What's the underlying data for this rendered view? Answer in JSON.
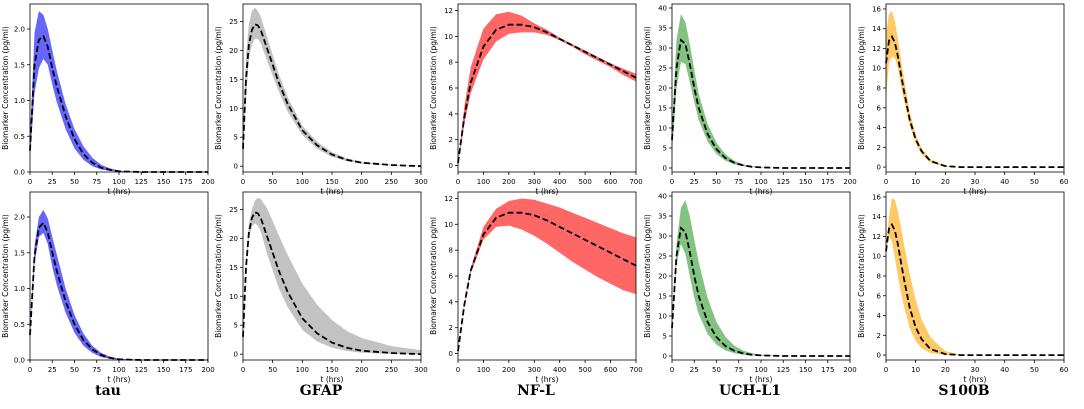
{
  "column_labels": [
    "tau",
    "GFAP",
    "NF-L",
    "UCH-L1",
    "S100B"
  ],
  "chart_data": [
    {
      "type": "area",
      "row": 1,
      "column": "tau",
      "color": "#0000ff",
      "xlabel": "t (hrs)",
      "ylabel": "Biomarker Concentration (pg/ml)",
      "xlim": [
        0,
        200
      ],
      "ylim": [
        0,
        2.35
      ],
      "xticks": [
        0,
        25,
        50,
        75,
        100,
        125,
        150,
        175,
        200
      ],
      "yticks": [
        0.0,
        0.5,
        1.0,
        1.5,
        2.0
      ],
      "ytick_labels": [
        "0.0",
        "0.5",
        "1.0",
        "1.5",
        "2.0"
      ],
      "x": [
        0,
        5,
        10,
        15,
        20,
        25,
        30,
        40,
        50,
        60,
        70,
        80,
        90,
        100,
        110,
        125,
        150,
        175,
        200
      ],
      "mean": [
        0.3,
        1.5,
        1.85,
        1.9,
        1.75,
        1.45,
        1.2,
        0.78,
        0.46,
        0.25,
        0.13,
        0.06,
        0.03,
        0.01,
        0.005,
        0,
        0,
        0,
        0
      ],
      "lower": [
        0.2,
        1.1,
        1.45,
        1.58,
        1.5,
        1.22,
        0.98,
        0.6,
        0.33,
        0.17,
        0.08,
        0.035,
        0.015,
        0.005,
        0,
        0,
        0,
        0,
        0
      ],
      "upper": [
        0.45,
        1.95,
        2.25,
        2.2,
        2.0,
        1.7,
        1.42,
        0.95,
        0.6,
        0.36,
        0.2,
        0.1,
        0.05,
        0.02,
        0.01,
        0,
        0,
        0,
        0
      ]
    },
    {
      "type": "area",
      "row": 1,
      "column": "GFAP",
      "color": "#999999",
      "xlabel": "t (hrs)",
      "ylabel": "Biomarker Concentration (pg/ml)",
      "xlim": [
        0,
        300
      ],
      "ylim": [
        -1,
        28
      ],
      "xticks": [
        0,
        50,
        100,
        150,
        200,
        250,
        300
      ],
      "yticks": [
        0,
        5,
        10,
        15,
        20,
        25
      ],
      "ytick_labels": [
        "0",
        "5",
        "10",
        "15",
        "20",
        "25"
      ],
      "x": [
        0,
        5,
        10,
        15,
        20,
        25,
        30,
        40,
        50,
        60,
        75,
        100,
        125,
        150,
        175,
        200,
        250,
        300
      ],
      "mean": [
        3,
        15,
        21,
        23.5,
        24.5,
        24.3,
        23.5,
        20.5,
        17.5,
        14.5,
        10.8,
        6.2,
        3.6,
        2.0,
        1.1,
        0.6,
        0.2,
        0
      ],
      "lower": [
        1.5,
        12,
        18.5,
        21,
        22,
        22,
        21.2,
        18.4,
        15.6,
        13,
        9.5,
        5.4,
        3.0,
        1.6,
        0.85,
        0.45,
        0.12,
        0
      ],
      "upper": [
        5,
        19,
        24.5,
        26.8,
        27.4,
        26.8,
        25.8,
        22.5,
        19.2,
        16,
        12,
        7.0,
        4.2,
        2.4,
        1.35,
        0.75,
        0.28,
        0.05
      ]
    },
    {
      "type": "area",
      "row": 1,
      "column": "NF-L",
      "color": "#ff0000",
      "xlabel": "t (hrs)",
      "ylabel": "Biomarker Concentration (pg/ml)",
      "xlim": [
        0,
        700
      ],
      "ylim": [
        -0.5,
        12.5
      ],
      "xticks": [
        0,
        100,
        200,
        300,
        400,
        500,
        600,
        700
      ],
      "yticks": [
        0,
        2,
        4,
        6,
        8,
        10,
        12
      ],
      "ytick_labels": [
        "0",
        "2",
        "4",
        "6",
        "8",
        "10",
        "12"
      ],
      "x": [
        0,
        25,
        50,
        100,
        150,
        200,
        250,
        300,
        350,
        400,
        450,
        500,
        550,
        600,
        650,
        700
      ],
      "mean": [
        0.2,
        3.8,
        6.4,
        9.2,
        10.5,
        10.9,
        10.9,
        10.7,
        10.3,
        9.8,
        9.3,
        8.8,
        8.3,
        7.8,
        7.3,
        6.8
      ],
      "lower": [
        0.2,
        3.2,
        5.6,
        8.2,
        9.6,
        10.2,
        10.3,
        10.3,
        10.1,
        9.7,
        9.2,
        8.6,
        8.1,
        7.6,
        7.0,
        6.5
      ],
      "upper": [
        0.2,
        4.6,
        7.6,
        10.6,
        11.7,
        11.9,
        11.6,
        11.0,
        10.5,
        9.9,
        9.4,
        8.9,
        8.4,
        7.9,
        7.5,
        7.1
      ]
    },
    {
      "type": "area",
      "row": 1,
      "column": "UCH-L1",
      "color": "#2e9b2e",
      "xlabel": "t (hrs)",
      "ylabel": "Biomarker Concentration (pg/ml)",
      "xlim": [
        0,
        200
      ],
      "ylim": [
        -1,
        41
      ],
      "xticks": [
        0,
        25,
        50,
        75,
        100,
        125,
        150,
        175,
        200
      ],
      "yticks": [
        0,
        5,
        10,
        15,
        20,
        25,
        30,
        35,
        40
      ],
      "ytick_labels": [
        "0",
        "5",
        "10",
        "15",
        "20",
        "25",
        "30",
        "35",
        "40"
      ],
      "x": [
        0,
        5,
        10,
        15,
        20,
        25,
        30,
        40,
        50,
        60,
        70,
        80,
        90,
        100,
        125,
        150,
        175,
        200
      ],
      "mean": [
        7,
        25,
        32,
        31,
        26,
        20,
        15,
        8.5,
        4.7,
        2.5,
        1.3,
        0.65,
        0.3,
        0.15,
        0,
        0,
        0,
        0
      ],
      "lower": [
        4,
        20,
        26.5,
        26,
        21.5,
        16.5,
        12,
        6.6,
        3.5,
        1.8,
        0.9,
        0.45,
        0.2,
        0.1,
        0,
        0,
        0,
        0
      ],
      "upper": [
        10,
        32,
        38.5,
        36.5,
        31,
        24.5,
        18.5,
        11,
        6.3,
        3.4,
        1.8,
        0.9,
        0.45,
        0.2,
        0,
        0,
        0,
        0
      ]
    },
    {
      "type": "area",
      "row": 1,
      "column": "S100B",
      "color": "#ffa500",
      "xlabel": "t (hrs)",
      "ylabel": "Biomarker Concentration (pg/ml)",
      "xlim": [
        0,
        60
      ],
      "ylim": [
        -0.5,
        16.5
      ],
      "xticks": [
        0,
        10,
        20,
        30,
        40,
        50,
        60
      ],
      "yticks": [
        0,
        2,
        4,
        6,
        8,
        10,
        12,
        14,
        16
      ],
      "ytick_labels": [
        "0",
        "2",
        "4",
        "6",
        "8",
        "10",
        "12",
        "14",
        "16"
      ],
      "x": [
        0,
        1,
        2,
        3,
        4,
        5,
        6,
        8,
        10,
        12,
        15,
        20,
        25,
        30,
        40,
        50,
        60
      ],
      "mean": [
        10.5,
        12.8,
        13.2,
        12.6,
        11.2,
        9.5,
        7.8,
        4.8,
        2.8,
        1.6,
        0.6,
        0.1,
        0,
        0,
        0,
        0,
        0
      ],
      "lower": [
        7,
        10.5,
        11.2,
        11,
        10,
        8.3,
        6.8,
        4.2,
        2.4,
        1.3,
        0.45,
        0.05,
        0,
        0,
        0,
        0,
        0
      ],
      "upper": [
        13.5,
        15.5,
        15.8,
        14.8,
        13,
        11,
        9.1,
        5.6,
        3.3,
        1.9,
        0.8,
        0.15,
        0,
        0,
        0,
        0,
        0
      ]
    },
    {
      "type": "area",
      "row": 2,
      "column": "tau",
      "color": "#0000ff",
      "xlabel": "t (hrs)",
      "ylabel": "Biomarker Concentration (pg/ml)",
      "xlim": [
        0,
        200
      ],
      "ylim": [
        0,
        2.35
      ],
      "xticks": [
        0,
        25,
        50,
        75,
        100,
        125,
        150,
        175,
        200
      ],
      "yticks": [
        0.0,
        0.5,
        1.0,
        1.5,
        2.0
      ],
      "ytick_labels": [
        "0.0",
        "0.5",
        "1.0",
        "1.5",
        "2.0"
      ],
      "x": [
        0,
        5,
        10,
        15,
        20,
        25,
        30,
        40,
        50,
        60,
        70,
        80,
        90,
        100,
        110,
        125,
        150,
        175,
        200
      ],
      "mean": [
        0.35,
        1.45,
        1.85,
        1.92,
        1.78,
        1.5,
        1.25,
        0.82,
        0.5,
        0.28,
        0.15,
        0.07,
        0.03,
        0.01,
        0.005,
        0,
        0,
        0,
        0
      ],
      "lower": [
        0.33,
        1.35,
        1.72,
        1.78,
        1.62,
        1.3,
        1.05,
        0.66,
        0.38,
        0.2,
        0.1,
        0.04,
        0.015,
        0.005,
        0,
        0,
        0,
        0,
        0
      ],
      "upper": [
        0.37,
        1.6,
        2.0,
        2.1,
        1.98,
        1.72,
        1.48,
        1.0,
        0.63,
        0.37,
        0.2,
        0.1,
        0.045,
        0.02,
        0.008,
        0,
        0,
        0,
        0
      ]
    },
    {
      "type": "area",
      "row": 2,
      "column": "GFAP",
      "color": "#999999",
      "xlabel": "t (hrs)",
      "ylabel": "Biomarker Concentration (pg/ml)",
      "xlim": [
        0,
        300
      ],
      "ylim": [
        -1,
        28
      ],
      "xticks": [
        0,
        50,
        100,
        150,
        200,
        250,
        300
      ],
      "yticks": [
        0,
        5,
        10,
        15,
        20,
        25
      ],
      "ytick_labels": [
        "0",
        "5",
        "10",
        "15",
        "20",
        "25"
      ],
      "x": [
        0,
        5,
        10,
        15,
        20,
        25,
        30,
        40,
        50,
        60,
        75,
        100,
        125,
        150,
        175,
        200,
        250,
        300
      ],
      "mean": [
        3,
        15,
        21,
        23.5,
        24.5,
        24.3,
        23.5,
        20.5,
        17.5,
        14.5,
        10.8,
        6.2,
        3.6,
        2.0,
        1.1,
        0.6,
        0.2,
        0
      ],
      "lower": [
        3,
        14.5,
        20,
        22,
        22.6,
        22.2,
        21.2,
        17.5,
        14.5,
        11.5,
        8.2,
        4.2,
        2.2,
        1.1,
        0.55,
        0.25,
        0.05,
        0
      ],
      "upper": [
        3,
        16,
        22.5,
        25,
        26.5,
        27,
        26.8,
        25.3,
        23,
        20.6,
        17.2,
        12.2,
        8.5,
        5.9,
        4.0,
        2.8,
        1.4,
        0.7
      ]
    },
    {
      "type": "area",
      "row": 2,
      "column": "NF-L",
      "color": "#ff0000",
      "xlabel": "t (hrs)",
      "ylabel": "Biomarker Concentration pg/ml",
      "xlim": [
        0,
        700
      ],
      "ylim": [
        -0.5,
        12.5
      ],
      "xticks": [
        0,
        100,
        200,
        300,
        400,
        500,
        600,
        700
      ],
      "yticks": [
        0,
        2,
        4,
        6,
        8,
        10,
        12
      ],
      "ytick_labels": [
        "0",
        "2",
        "4",
        "6",
        "8",
        "10",
        "12"
      ],
      "x": [
        0,
        25,
        50,
        100,
        150,
        200,
        250,
        300,
        350,
        400,
        450,
        500,
        550,
        600,
        650,
        700
      ],
      "mean": [
        0.2,
        3.8,
        6.4,
        9.2,
        10.5,
        10.9,
        10.9,
        10.7,
        10.3,
        9.8,
        9.3,
        8.8,
        8.3,
        7.8,
        7.3,
        6.8
      ],
      "lower": [
        0.2,
        3.7,
        6.2,
        8.8,
        9.8,
        9.9,
        9.6,
        9.1,
        8.5,
        7.8,
        7.1,
        6.5,
        5.9,
        5.4,
        4.9,
        4.6
      ],
      "upper": [
        0.2,
        3.9,
        6.6,
        9.8,
        11.2,
        11.8,
        12.0,
        11.9,
        11.6,
        11.3,
        10.9,
        10.5,
        10.1,
        9.7,
        9.3,
        9.0
      ]
    },
    {
      "type": "area",
      "row": 2,
      "column": "UCH-L1",
      "color": "#2e9b2e",
      "xlabel": "t (hrs)",
      "ylabel": "Biomarker Concentration (pg/ml)",
      "xlim": [
        0,
        200
      ],
      "ylim": [
        -1,
        41
      ],
      "xticks": [
        0,
        25,
        50,
        75,
        100,
        125,
        150,
        175,
        200
      ],
      "yticks": [
        0,
        5,
        10,
        15,
        20,
        25,
        30,
        35,
        40
      ],
      "ytick_labels": [
        "0",
        "5",
        "10",
        "15",
        "20",
        "25",
        "30",
        "35",
        "40"
      ],
      "x": [
        0,
        5,
        10,
        15,
        20,
        25,
        30,
        40,
        50,
        60,
        70,
        80,
        90,
        100,
        125,
        150,
        175,
        200
      ],
      "mean": [
        7,
        25,
        32,
        31,
        26,
        20,
        15,
        8.5,
        4.7,
        2.5,
        1.3,
        0.65,
        0.3,
        0.15,
        0,
        0,
        0,
        0
      ],
      "lower": [
        7,
        23,
        28,
        25.5,
        20,
        14.5,
        10.5,
        5.5,
        2.8,
        1.4,
        0.7,
        0.3,
        0.12,
        0.05,
        0,
        0,
        0,
        0
      ],
      "upper": [
        7,
        28,
        37,
        39,
        35,
        29,
        23.5,
        14.5,
        8.5,
        4.8,
        2.6,
        1.35,
        0.68,
        0.33,
        0.05,
        0,
        0,
        0
      ]
    },
    {
      "type": "area",
      "row": 2,
      "column": "S100B",
      "color": "#ffa500",
      "xlabel": "t (hrs)",
      "ylabel": "Biomarker Concentration (pg/ml)",
      "xlim": [
        0,
        60
      ],
      "ylim": [
        -0.5,
        16.5
      ],
      "xticks": [
        0,
        10,
        20,
        30,
        40,
        50,
        60
      ],
      "yticks": [
        0,
        2,
        4,
        6,
        8,
        10,
        12,
        14,
        16
      ],
      "ytick_labels": [
        "0",
        "2",
        "4",
        "6",
        "8",
        "10",
        "12",
        "14",
        "16"
      ],
      "x": [
        0,
        1,
        2,
        3,
        4,
        5,
        6,
        8,
        10,
        12,
        15,
        20,
        25,
        30,
        40,
        50,
        60
      ],
      "mean": [
        10.5,
        12.8,
        13.2,
        12.6,
        11.2,
        9.5,
        7.8,
        4.8,
        2.8,
        1.6,
        0.6,
        0.1,
        0,
        0,
        0,
        0,
        0
      ],
      "lower": [
        10.5,
        12,
        11.5,
        9.8,
        8,
        6.4,
        5,
        2.7,
        1.4,
        0.7,
        0.2,
        0.02,
        0,
        0,
        0,
        0,
        0
      ],
      "upper": [
        10.5,
        14,
        15.9,
        15.7,
        14.6,
        13,
        11.3,
        8.2,
        5.6,
        3.6,
        1.8,
        0.4,
        0.06,
        0,
        0,
        0,
        0
      ]
    }
  ]
}
